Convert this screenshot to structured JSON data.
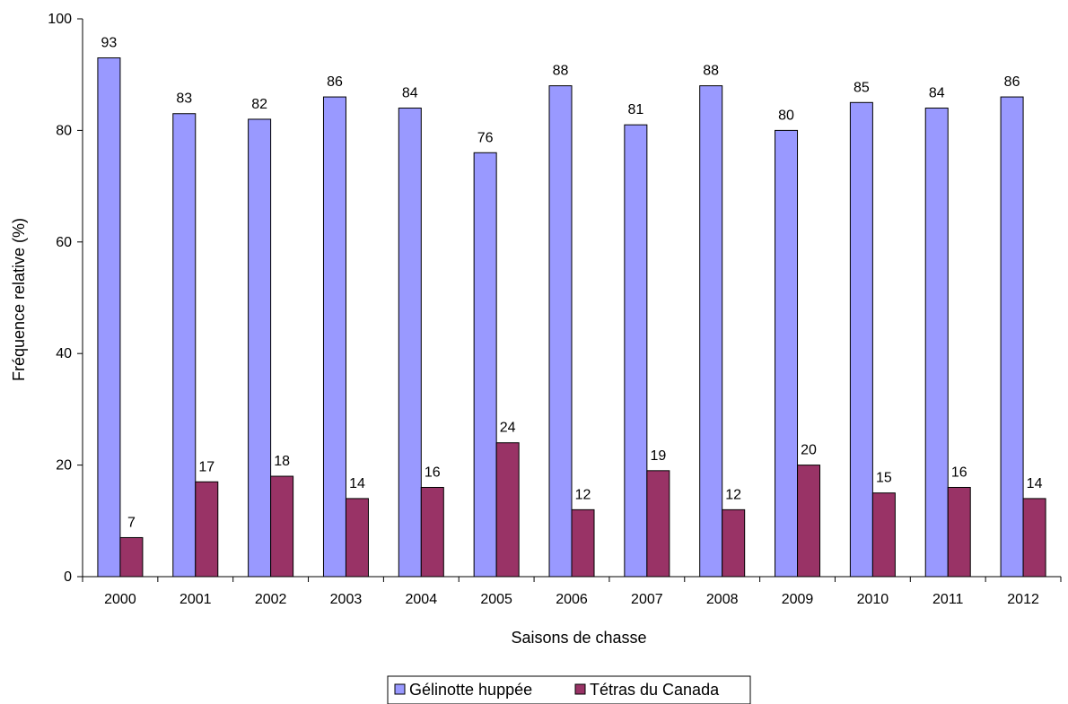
{
  "chart_data": {
    "type": "bar",
    "title": "",
    "xlabel": "Saisons de chasse",
    "ylabel": "Fréquence relative (%)",
    "ylim": [
      0,
      100
    ],
    "yticks": [
      0,
      20,
      40,
      60,
      80,
      100
    ],
    "grid": false,
    "legend_position": "bottom-center",
    "categories": [
      "2000",
      "2001",
      "2002",
      "2003",
      "2004",
      "2005",
      "2006",
      "2007",
      "2008",
      "2009",
      "2010",
      "2011",
      "2012"
    ],
    "series": [
      {
        "name": "Gélinotte huppée",
        "color": "#9999ff",
        "values": [
          93,
          83,
          82,
          86,
          84,
          76,
          88,
          81,
          88,
          80,
          85,
          84,
          86
        ]
      },
      {
        "name": "Tétras du Canada",
        "color": "#993366",
        "values": [
          7,
          17,
          18,
          14,
          16,
          24,
          12,
          19,
          12,
          20,
          15,
          16,
          14
        ]
      }
    ]
  }
}
